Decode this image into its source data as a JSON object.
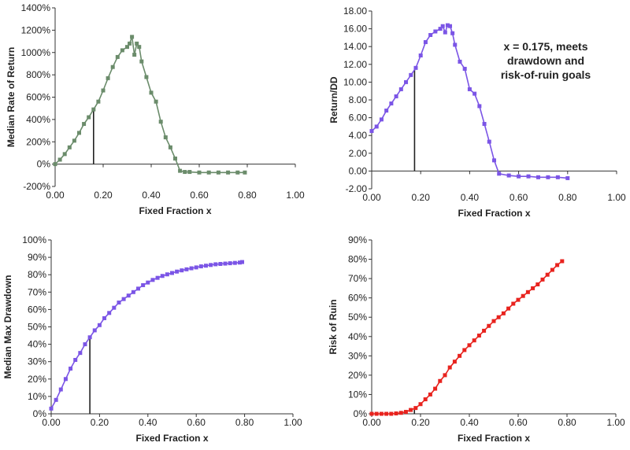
{
  "chart_data": [
    {
      "type": "line",
      "xlabel": "Fixed Fraction x",
      "ylabel": "Median Rate of Return",
      "xlim": [
        0,
        1.0
      ],
      "ylim": [
        -200,
        1400
      ],
      "x_ticks": [
        "0.00",
        "0.20",
        "0.40",
        "0.60",
        "0.80",
        "1.00"
      ],
      "y_ticks": [
        "-200%",
        "0%",
        "200%",
        "400%",
        "600%",
        "800%",
        "1000%",
        "1200%",
        "1400%"
      ],
      "color": "#6b8c6b",
      "marker": "square",
      "x_marker": 0.16,
      "x": [
        0.0,
        0.02,
        0.04,
        0.06,
        0.08,
        0.1,
        0.12,
        0.14,
        0.16,
        0.18,
        0.2,
        0.22,
        0.24,
        0.26,
        0.28,
        0.3,
        0.31,
        0.32,
        0.33,
        0.34,
        0.35,
        0.36,
        0.38,
        0.4,
        0.42,
        0.44,
        0.46,
        0.48,
        0.5,
        0.52,
        0.54,
        0.56,
        0.6,
        0.64,
        0.68,
        0.72,
        0.76,
        0.79
      ],
      "y": [
        0,
        40,
        90,
        150,
        210,
        280,
        360,
        420,
        490,
        560,
        660,
        770,
        870,
        960,
        1020,
        1050,
        1080,
        1140,
        980,
        1080,
        1050,
        920,
        780,
        640,
        560,
        380,
        240,
        150,
        50,
        -60,
        -70,
        -70,
        -75,
        -75,
        -75,
        -75,
        -75,
        -75
      ]
    },
    {
      "type": "line",
      "xlabel": "Fixed Fraction x",
      "ylabel": "Return/DD",
      "xlim": [
        0,
        1.0
      ],
      "ylim": [
        -2,
        18
      ],
      "x_ticks": [
        "0.00",
        "0.20",
        "0.40",
        "0.60",
        "0.80",
        "1.00"
      ],
      "y_ticks": [
        "-2.00",
        "0.00",
        "2.00",
        "4.00",
        "6.00",
        "8.00",
        "10.00",
        "12.00",
        "14.00",
        "16.00",
        "18.00"
      ],
      "color": "#7b55e6",
      "marker": "square",
      "x_marker": 0.175,
      "annotation": [
        "x = 0.175, meets",
        "drawdown and",
        "risk-of-ruin goals"
      ],
      "x": [
        0.0,
        0.02,
        0.04,
        0.06,
        0.08,
        0.1,
        0.12,
        0.14,
        0.16,
        0.18,
        0.2,
        0.22,
        0.24,
        0.26,
        0.28,
        0.29,
        0.3,
        0.31,
        0.32,
        0.33,
        0.34,
        0.36,
        0.38,
        0.4,
        0.42,
        0.44,
        0.46,
        0.48,
        0.5,
        0.52,
        0.56,
        0.6,
        0.64,
        0.68,
        0.72,
        0.76,
        0.8
      ],
      "y": [
        4.5,
        5.0,
        5.8,
        6.8,
        7.6,
        8.4,
        9.2,
        10.0,
        10.8,
        11.6,
        13.0,
        14.5,
        15.3,
        15.7,
        16.0,
        16.3,
        15.6,
        16.4,
        16.3,
        15.5,
        14.2,
        12.3,
        11.5,
        9.2,
        8.7,
        7.3,
        5.3,
        3.3,
        1.2,
        -0.3,
        -0.5,
        -0.6,
        -0.6,
        -0.7,
        -0.7,
        -0.7,
        -0.8
      ]
    },
    {
      "type": "line",
      "xlabel": "Fixed Fraction x",
      "ylabel": "Median Max Drawdown",
      "xlim": [
        0,
        1.0
      ],
      "ylim": [
        0,
        100
      ],
      "x_ticks": [
        "0.00",
        "0.20",
        "0.40",
        "0.60",
        "0.80",
        "1.00"
      ],
      "y_ticks": [
        "0%",
        "10%",
        "20%",
        "30%",
        "40%",
        "50%",
        "60%",
        "70%",
        "80%",
        "90%",
        "100%"
      ],
      "color": "#7b55e6",
      "marker": "square",
      "x_marker": 0.16,
      "x": [
        0.0,
        0.02,
        0.04,
        0.06,
        0.08,
        0.1,
        0.12,
        0.14,
        0.16,
        0.18,
        0.2,
        0.22,
        0.24,
        0.26,
        0.28,
        0.3,
        0.32,
        0.34,
        0.36,
        0.38,
        0.4,
        0.42,
        0.44,
        0.46,
        0.48,
        0.5,
        0.52,
        0.54,
        0.56,
        0.58,
        0.6,
        0.62,
        0.64,
        0.66,
        0.68,
        0.7,
        0.72,
        0.74,
        0.76,
        0.78,
        0.79
      ],
      "y": [
        3,
        8,
        14,
        20,
        26,
        31,
        35,
        40,
        44,
        48,
        51,
        55,
        58,
        61,
        64,
        66,
        68,
        70,
        72,
        74,
        75.5,
        77,
        78.2,
        79.3,
        80.2,
        81,
        81.8,
        82.5,
        83.1,
        83.7,
        84.2,
        84.8,
        85.2,
        85.6,
        86,
        86.2,
        86.4,
        86.6,
        86.8,
        87,
        87.3
      ]
    },
    {
      "type": "line",
      "xlabel": "Fixed Fraction x",
      "ylabel": "Risk of Ruin",
      "xlim": [
        0,
        1.0
      ],
      "ylim": [
        0,
        90
      ],
      "x_ticks": [
        "0.00",
        "0.20",
        "0.40",
        "0.60",
        "0.80",
        "1.00"
      ],
      "y_ticks": [
        "0%",
        "10%",
        "20%",
        "30%",
        "40%",
        "50%",
        "60%",
        "70%",
        "80%",
        "90%"
      ],
      "color": "#e8231e",
      "marker": "square",
      "x_marker": 0.175,
      "x": [
        0.0,
        0.02,
        0.04,
        0.06,
        0.08,
        0.1,
        0.12,
        0.14,
        0.16,
        0.18,
        0.2,
        0.22,
        0.24,
        0.26,
        0.28,
        0.3,
        0.32,
        0.34,
        0.36,
        0.38,
        0.4,
        0.42,
        0.44,
        0.46,
        0.48,
        0.5,
        0.52,
        0.54,
        0.56,
        0.58,
        0.6,
        0.62,
        0.64,
        0.66,
        0.68,
        0.7,
        0.72,
        0.74,
        0.76,
        0.78
      ],
      "y": [
        0,
        0,
        0,
        0,
        0,
        0.2,
        0.5,
        1,
        2,
        3,
        5,
        7.5,
        10,
        13,
        17,
        20,
        24,
        27,
        30,
        33,
        35.5,
        38,
        40.5,
        43,
        45.5,
        48,
        50,
        52,
        54.5,
        57,
        59,
        61,
        63,
        65,
        67,
        69.5,
        72,
        74.5,
        77,
        79
      ]
    }
  ]
}
